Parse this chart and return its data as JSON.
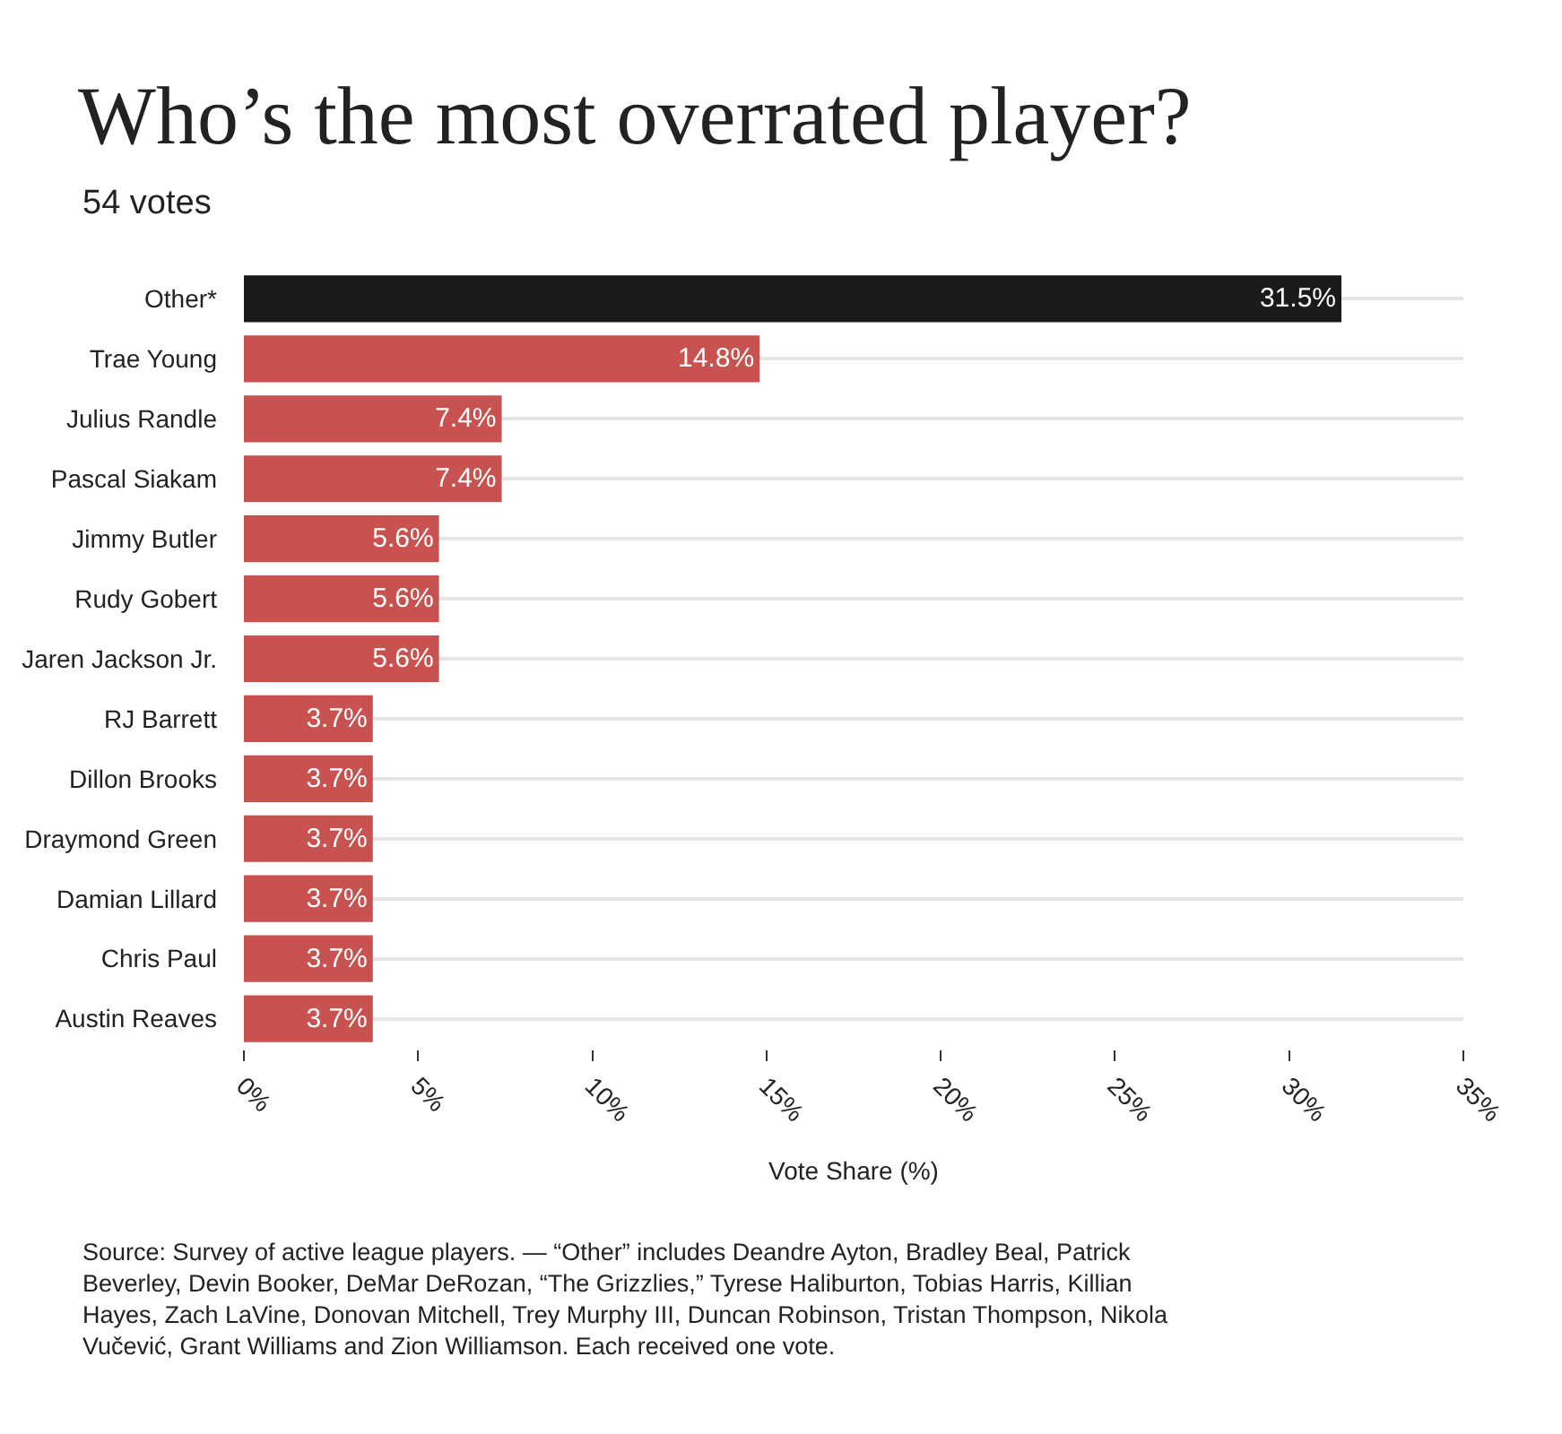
{
  "chart_data": {
    "type": "bar",
    "orientation": "horizontal",
    "title": "Who’s the most overrated player?",
    "subtitle": "54 votes",
    "categories": [
      "Other*",
      "Trae Young",
      "Julius Randle",
      "Pascal Siakam",
      "Jimmy Butler",
      "Rudy Gobert",
      "Jaren Jackson Jr.",
      "RJ Barrett",
      "Dillon Brooks",
      "Draymond Green",
      "Damian Lillard",
      "Chris Paul",
      "Austin Reaves"
    ],
    "values": [
      31.5,
      14.8,
      7.4,
      7.4,
      5.6,
      5.6,
      5.6,
      3.7,
      3.7,
      3.7,
      3.7,
      3.7,
      3.7
    ],
    "colors": [
      "#1a1a1a",
      "#c85250",
      "#c85250",
      "#c85250",
      "#c85250",
      "#c85250",
      "#c85250",
      "#c85250",
      "#c85250",
      "#c85250",
      "#c85250",
      "#c85250",
      "#c85250"
    ],
    "value_labels": [
      "31.5%",
      "14.8%",
      "7.4%",
      "7.4%",
      "5.6%",
      "5.6%",
      "5.6%",
      "3.7%",
      "3.7%",
      "3.7%",
      "3.7%",
      "3.7%",
      "3.7%"
    ],
    "xlim": [
      0,
      35
    ],
    "xticks": [
      {
        "value": 0,
        "label": "0%"
      },
      {
        "value": 5,
        "label": "5%"
      },
      {
        "value": 10,
        "label": "10%"
      },
      {
        "value": 15,
        "label": "15%"
      },
      {
        "value": 20,
        "label": "20%"
      },
      {
        "value": 25,
        "label": "25%"
      },
      {
        "value": 30,
        "label": "30%"
      },
      {
        "value": 35,
        "label": "35%"
      }
    ],
    "xlabel": "Vote Share (%)",
    "grid": "y",
    "legend": false,
    "annotations": [
      "Source: Survey of active league players. — “Other” includes Deandre Ayton, Bradley Beal, Patrick Beverley, Devin Booker, DeMar DeRozan, “The Grizzlies,” Tyrese Haliburton, Tobias Harris, Killian Hayes, Zach LaVine, Donovan Mitchell, Trey Murphy III, Duncan Robinson, Tristan Thompson, Nikola Vučević, Grant Williams and Zion Williamson. Each received one vote."
    ]
  }
}
